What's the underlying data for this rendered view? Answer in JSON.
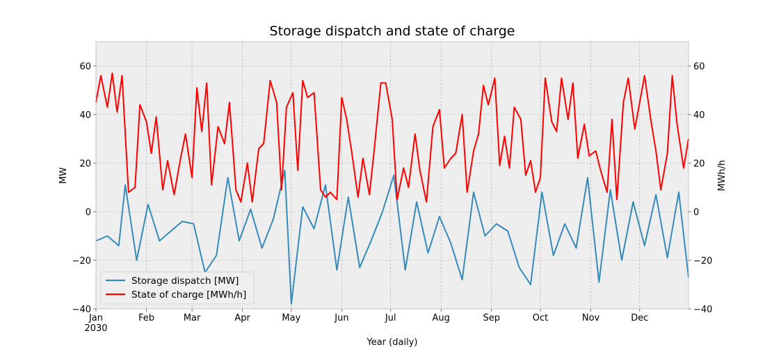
{
  "chart_data": {
    "type": "line",
    "title": "Storage dispatch and state of charge",
    "xlabel": "Year (daily)",
    "ylabel": "MW",
    "ylabel_right": "MWh/h",
    "x_range": [
      "2030-01-01",
      "2030-12-31"
    ],
    "ylim": [
      -40,
      70
    ],
    "ylim_right": [
      -40,
      70
    ],
    "yticks": [
      -40,
      -20,
      0,
      20,
      40,
      60
    ],
    "xticks": [
      {
        "date": "2030-01-01",
        "label": "Jan",
        "sublabel": "2030"
      },
      {
        "date": "2030-02-01",
        "label": "Feb"
      },
      {
        "date": "2030-03-01",
        "label": "Mar"
      },
      {
        "date": "2030-04-01",
        "label": "Apr"
      },
      {
        "date": "2030-05-01",
        "label": "May"
      },
      {
        "date": "2030-06-01",
        "label": "Jun"
      },
      {
        "date": "2030-07-01",
        "label": "Jul"
      },
      {
        "date": "2030-08-01",
        "label": "Aug"
      },
      {
        "date": "2030-09-01",
        "label": "Sep"
      },
      {
        "date": "2030-10-01",
        "label": "Oct"
      },
      {
        "date": "2030-11-01",
        "label": "Nov"
      },
      {
        "date": "2030-12-01",
        "label": "Dec"
      }
    ],
    "grid": true,
    "legend_position": "lower-left",
    "colors": {
      "dispatch": "#348ABD",
      "soc": "#FF0000",
      "plot_bg": "#EEEEEE",
      "grid": "#A0A0A0"
    },
    "series": [
      {
        "name": "Storage dispatch [MW]",
        "axis": "left",
        "sampling": "weekly-approx",
        "points": [
          [
            "2030-01-01",
            -12
          ],
          [
            "2030-01-08",
            -10
          ],
          [
            "2030-01-15",
            -14
          ],
          [
            "2030-01-19",
            11
          ],
          [
            "2030-01-26",
            -20
          ],
          [
            "2030-02-02",
            3
          ],
          [
            "2030-02-09",
            -12
          ],
          [
            "2030-02-16",
            -8
          ],
          [
            "2030-02-23",
            -4
          ],
          [
            "2030-03-02",
            -5
          ],
          [
            "2030-03-09",
            -25
          ],
          [
            "2030-03-16",
            -18
          ],
          [
            "2030-03-23",
            14
          ],
          [
            "2030-03-30",
            -12
          ],
          [
            "2030-04-06",
            1
          ],
          [
            "2030-04-13",
            -15
          ],
          [
            "2030-04-20",
            -3
          ],
          [
            "2030-04-27",
            17
          ],
          [
            "2030-05-01",
            -38
          ],
          [
            "2030-05-08",
            2
          ],
          [
            "2030-05-15",
            -7
          ],
          [
            "2030-05-22",
            11
          ],
          [
            "2030-05-29",
            -24
          ],
          [
            "2030-06-05",
            6
          ],
          [
            "2030-06-12",
            -23
          ],
          [
            "2030-06-19",
            -12
          ],
          [
            "2030-06-26",
            0
          ],
          [
            "2030-07-03",
            15
          ],
          [
            "2030-07-10",
            -24
          ],
          [
            "2030-07-17",
            4
          ],
          [
            "2030-07-24",
            -17
          ],
          [
            "2030-07-31",
            -2
          ],
          [
            "2030-08-07",
            -13
          ],
          [
            "2030-08-14",
            -28
          ],
          [
            "2030-08-21",
            8
          ],
          [
            "2030-08-28",
            -10
          ],
          [
            "2030-09-04",
            -5
          ],
          [
            "2030-09-11",
            -8
          ],
          [
            "2030-09-18",
            -23
          ],
          [
            "2030-09-25",
            -30
          ],
          [
            "2030-10-02",
            8
          ],
          [
            "2030-10-09",
            -18
          ],
          [
            "2030-10-16",
            -5
          ],
          [
            "2030-10-23",
            -15
          ],
          [
            "2030-10-30",
            14
          ],
          [
            "2030-11-06",
            -29
          ],
          [
            "2030-11-13",
            9
          ],
          [
            "2030-11-20",
            -20
          ],
          [
            "2030-11-27",
            4
          ],
          [
            "2030-12-04",
            -14
          ],
          [
            "2030-12-11",
            7
          ],
          [
            "2030-12-18",
            -19
          ],
          [
            "2030-12-25",
            8
          ],
          [
            "2030-12-31",
            -27
          ]
        ]
      },
      {
        "name": "State of charge [MWh/h]",
        "axis": "right",
        "sampling": "weekly-approx",
        "points": [
          [
            "2030-01-01",
            45
          ],
          [
            "2030-01-04",
            56
          ],
          [
            "2030-01-08",
            43
          ],
          [
            "2030-01-11",
            57
          ],
          [
            "2030-01-14",
            41
          ],
          [
            "2030-01-17",
            56
          ],
          [
            "2030-01-21",
            8
          ],
          [
            "2030-01-25",
            10
          ],
          [
            "2030-01-28",
            44
          ],
          [
            "2030-02-01",
            37
          ],
          [
            "2030-02-04",
            24
          ],
          [
            "2030-02-07",
            39
          ],
          [
            "2030-02-11",
            9
          ],
          [
            "2030-02-14",
            21
          ],
          [
            "2030-02-18",
            7
          ],
          [
            "2030-02-22",
            22
          ],
          [
            "2030-02-25",
            32
          ],
          [
            "2030-03-01",
            14
          ],
          [
            "2030-03-04",
            51
          ],
          [
            "2030-03-07",
            33
          ],
          [
            "2030-03-10",
            53
          ],
          [
            "2030-03-13",
            11
          ],
          [
            "2030-03-17",
            35
          ],
          [
            "2030-03-21",
            28
          ],
          [
            "2030-03-24",
            45
          ],
          [
            "2030-03-28",
            9
          ],
          [
            "2030-03-31",
            4
          ],
          [
            "2030-04-04",
            20
          ],
          [
            "2030-04-07",
            4
          ],
          [
            "2030-04-11",
            26
          ],
          [
            "2030-04-14",
            28
          ],
          [
            "2030-04-18",
            54
          ],
          [
            "2030-04-22",
            45
          ],
          [
            "2030-04-25",
            9
          ],
          [
            "2030-04-28",
            43
          ],
          [
            "2030-05-02",
            49
          ],
          [
            "2030-05-05",
            17
          ],
          [
            "2030-05-08",
            54
          ],
          [
            "2030-05-11",
            47
          ],
          [
            "2030-05-15",
            49
          ],
          [
            "2030-05-19",
            9
          ],
          [
            "2030-05-22",
            6
          ],
          [
            "2030-05-25",
            8
          ],
          [
            "2030-05-29",
            5
          ],
          [
            "2030-06-01",
            47
          ],
          [
            "2030-06-04",
            38
          ],
          [
            "2030-06-07",
            25
          ],
          [
            "2030-06-11",
            6
          ],
          [
            "2030-06-14",
            22
          ],
          [
            "2030-06-18",
            7
          ],
          [
            "2030-06-21",
            26
          ],
          [
            "2030-06-25",
            53
          ],
          [
            "2030-06-28",
            53
          ],
          [
            "2030-07-02",
            38
          ],
          [
            "2030-07-05",
            5
          ],
          [
            "2030-07-09",
            18
          ],
          [
            "2030-07-12",
            10
          ],
          [
            "2030-07-16",
            32
          ],
          [
            "2030-07-19",
            17
          ],
          [
            "2030-07-23",
            4
          ],
          [
            "2030-07-27",
            35
          ],
          [
            "2030-07-31",
            42
          ],
          [
            "2030-08-03",
            18
          ],
          [
            "2030-08-07",
            22
          ],
          [
            "2030-08-10",
            24
          ],
          [
            "2030-08-14",
            40
          ],
          [
            "2030-08-17",
            8
          ],
          [
            "2030-08-21",
            25
          ],
          [
            "2030-08-24",
            32
          ],
          [
            "2030-08-27",
            52
          ],
          [
            "2030-08-30",
            44
          ],
          [
            "2030-09-03",
            55
          ],
          [
            "2030-09-06",
            19
          ],
          [
            "2030-09-09",
            31
          ],
          [
            "2030-09-12",
            18
          ],
          [
            "2030-09-15",
            43
          ],
          [
            "2030-09-19",
            38
          ],
          [
            "2030-09-22",
            15
          ],
          [
            "2030-09-25",
            21
          ],
          [
            "2030-09-28",
            8
          ],
          [
            "2030-10-01",
            14
          ],
          [
            "2030-10-04",
            55
          ],
          [
            "2030-10-08",
            37
          ],
          [
            "2030-10-11",
            33
          ],
          [
            "2030-10-14",
            55
          ],
          [
            "2030-10-18",
            38
          ],
          [
            "2030-10-21",
            53
          ],
          [
            "2030-10-24",
            22
          ],
          [
            "2030-10-28",
            36
          ],
          [
            "2030-10-31",
            23
          ],
          [
            "2030-11-04",
            25
          ],
          [
            "2030-11-07",
            17
          ],
          [
            "2030-11-11",
            8
          ],
          [
            "2030-11-14",
            38
          ],
          [
            "2030-11-17",
            5
          ],
          [
            "2030-11-21",
            45
          ],
          [
            "2030-11-24",
            55
          ],
          [
            "2030-11-28",
            34
          ],
          [
            "2030-12-01",
            45
          ],
          [
            "2030-12-04",
            56
          ],
          [
            "2030-12-08",
            37
          ],
          [
            "2030-12-11",
            25
          ],
          [
            "2030-12-14",
            9
          ],
          [
            "2030-12-18",
            24
          ],
          [
            "2030-12-21",
            56
          ],
          [
            "2030-12-24",
            36
          ],
          [
            "2030-12-28",
            18
          ],
          [
            "2030-12-31",
            30
          ]
        ]
      }
    ]
  }
}
